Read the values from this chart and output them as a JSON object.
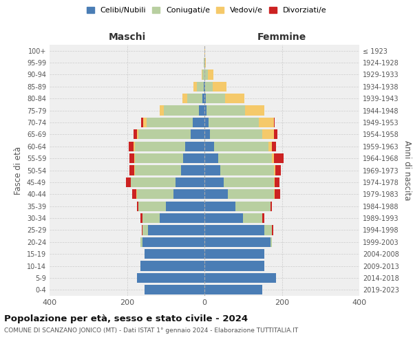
{
  "age_groups": [
    "0-4",
    "5-9",
    "10-14",
    "15-19",
    "20-24",
    "25-29",
    "30-34",
    "35-39",
    "40-44",
    "45-49",
    "50-54",
    "55-59",
    "60-64",
    "65-69",
    "70-74",
    "75-79",
    "80-84",
    "85-89",
    "90-94",
    "95-99",
    "100+"
  ],
  "birth_years": [
    "2019-2023",
    "2014-2018",
    "2009-2013",
    "2004-2008",
    "1999-2003",
    "1994-1998",
    "1989-1993",
    "1984-1988",
    "1979-1983",
    "1974-1978",
    "1969-1973",
    "1964-1968",
    "1959-1963",
    "1954-1958",
    "1949-1953",
    "1944-1948",
    "1939-1943",
    "1934-1938",
    "1929-1933",
    "1924-1928",
    "≤ 1923"
  ],
  "colors": {
    "celibe": "#4a7db5",
    "coniugato": "#b8cfa0",
    "vedovo": "#f5c96a",
    "divorziato": "#cc2222"
  },
  "maschi": {
    "celibe": [
      155,
      175,
      165,
      155,
      160,
      145,
      115,
      100,
      80,
      75,
      60,
      55,
      50,
      35,
      30,
      15,
      5,
      2,
      0,
      0,
      0
    ],
    "coniugato": [
      0,
      0,
      0,
      0,
      5,
      15,
      45,
      70,
      95,
      115,
      120,
      125,
      130,
      135,
      120,
      90,
      40,
      18,
      5,
      1,
      0
    ],
    "vedovo": [
      0,
      0,
      0,
      0,
      0,
      0,
      0,
      0,
      1,
      1,
      1,
      2,
      3,
      5,
      8,
      10,
      12,
      8,
      2,
      0,
      0
    ],
    "divorziato": [
      0,
      0,
      0,
      0,
      0,
      1,
      5,
      5,
      10,
      12,
      12,
      12,
      12,
      8,
      5,
      1,
      0,
      0,
      0,
      0,
      0
    ]
  },
  "femmine": {
    "celibe": [
      150,
      185,
      155,
      155,
      170,
      155,
      100,
      80,
      60,
      50,
      40,
      35,
      25,
      15,
      10,
      5,
      3,
      1,
      0,
      0,
      0
    ],
    "coniugato": [
      0,
      0,
      0,
      0,
      5,
      20,
      50,
      90,
      120,
      130,
      140,
      140,
      140,
      135,
      130,
      100,
      50,
      20,
      8,
      1,
      0
    ],
    "vedovo": [
      0,
      0,
      0,
      0,
      0,
      0,
      0,
      0,
      1,
      2,
      3,
      5,
      10,
      30,
      40,
      50,
      50,
      35,
      15,
      2,
      1
    ],
    "divorziato": [
      0,
      0,
      0,
      0,
      0,
      3,
      5,
      5,
      15,
      12,
      15,
      25,
      10,
      8,
      1,
      0,
      0,
      0,
      0,
      0,
      0
    ]
  },
  "title1": "Popolazione per età, sesso e stato civile - 2024",
  "title2": "COMUNE DI SCANZANO JONICO (MT) - Dati ISTAT 1° gennaio 2024 - Elaborazione TUTTITALIA.IT",
  "xlabel_left": "Maschi",
  "xlabel_right": "Femmine",
  "ylabel_left": "Fasce di età",
  "ylabel_right": "Anni di nascita",
  "xlim": 400,
  "bg_color": "#ffffff",
  "plot_bg_color": "#efefef",
  "legend_labels": [
    "Celibi/Nubili",
    "Coniugati/e",
    "Vedovi/e",
    "Divorziati/e"
  ]
}
